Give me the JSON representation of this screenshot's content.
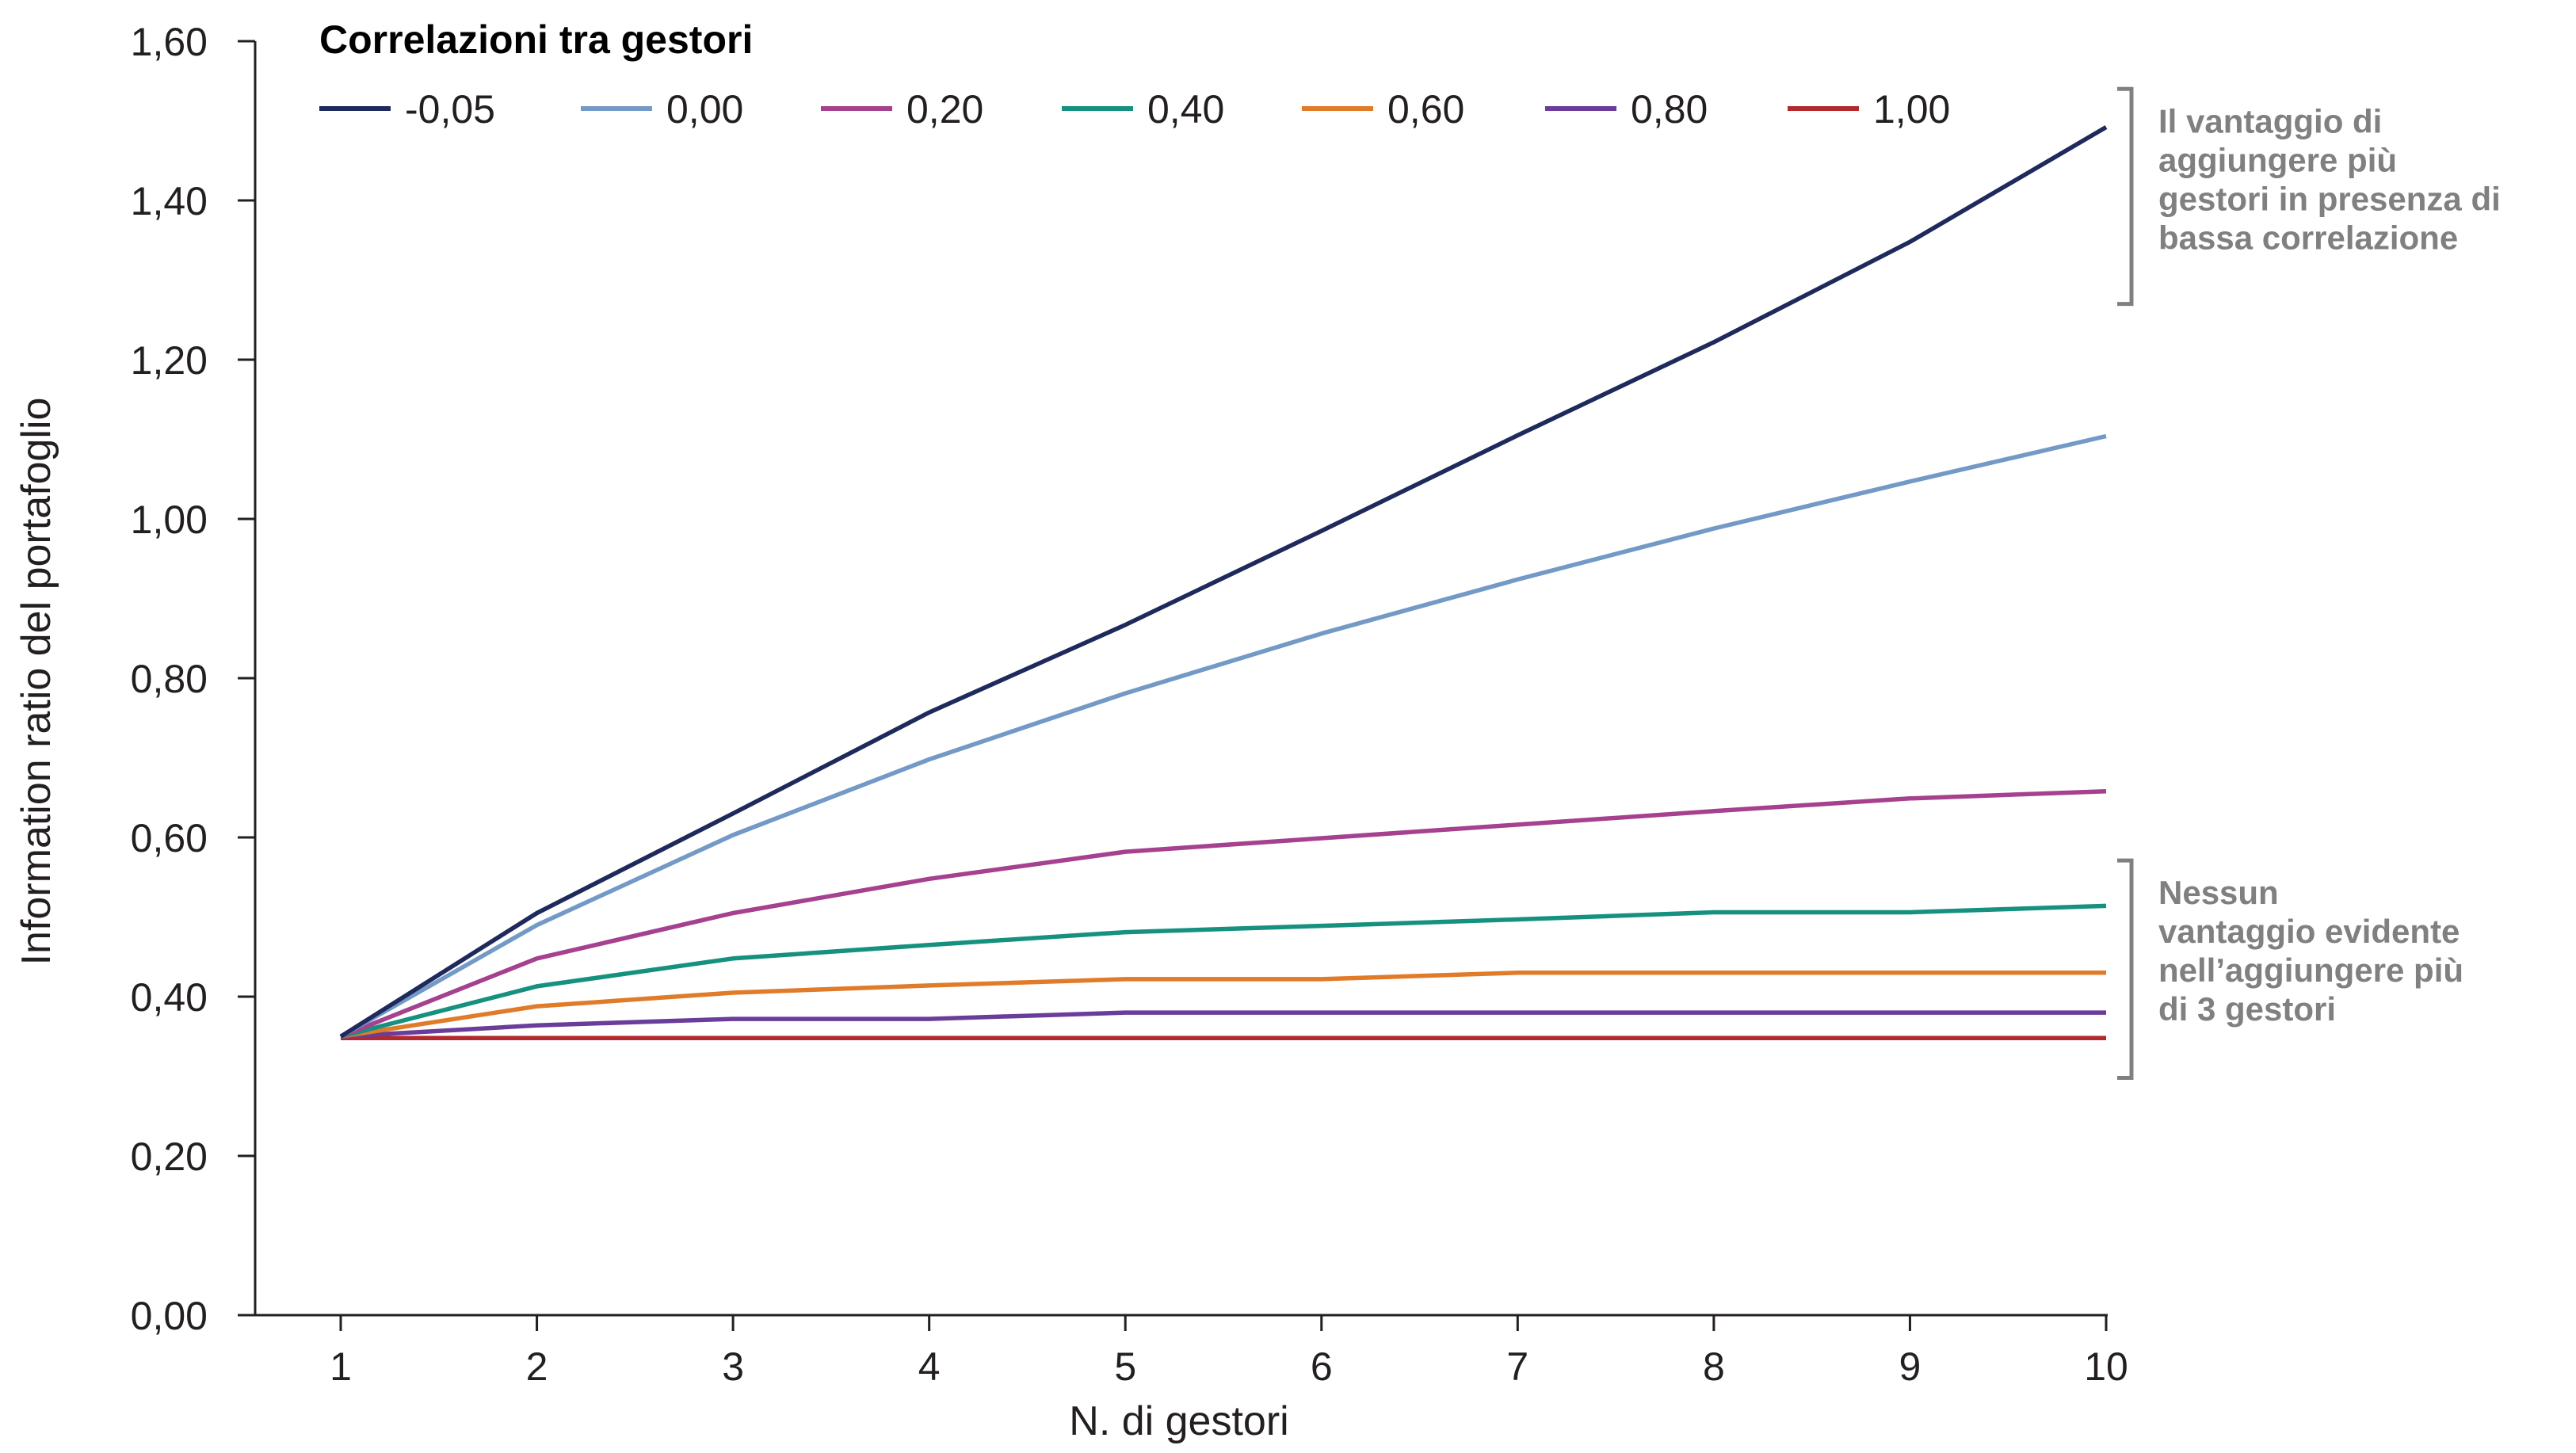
{
  "chart_data": {
    "type": "line",
    "xlabel": "N. di gestori",
    "ylabel": "Information ratio del portafoglio",
    "x": [
      1,
      2,
      3,
      4,
      5,
      6,
      7,
      8,
      9,
      10
    ],
    "x_tick_labels": [
      "1",
      "2",
      "3",
      "4",
      "5",
      "6",
      "7",
      "8",
      "9",
      "10"
    ],
    "ylim": [
      0,
      1.6
    ],
    "y_ticks": [
      0,
      0.2,
      0.4,
      0.6,
      0.8,
      1.0,
      1.2,
      1.4,
      1.6
    ],
    "y_tick_labels": [
      "0,00",
      "0,20",
      "0,40",
      "0,60",
      "0,80",
      "1,00",
      "1,20",
      "1,40",
      "1,60"
    ],
    "grid": false,
    "legend": {
      "title": "Correlazioni tra gestori",
      "placement": "top"
    },
    "series": [
      {
        "name": "-0,05",
        "color": "#1f2a5c",
        "values": [
          0.35,
          0.505,
          0.63,
          0.757,
          0.867,
          0.985,
          1.105,
          1.222,
          1.348,
          1.492
        ]
      },
      {
        "name": "0,00",
        "color": "#7399c6",
        "values": [
          0.35,
          0.49,
          0.603,
          0.698,
          0.781,
          0.856,
          0.924,
          0.988,
          1.047,
          1.104
        ]
      },
      {
        "name": "0,20",
        "color": "#a5418f",
        "values": [
          0.35,
          0.448,
          0.505,
          0.548,
          0.582,
          0.599,
          0.616,
          0.633,
          0.649,
          0.658
        ]
      },
      {
        "name": "0,40",
        "color": "#16917f",
        "values": [
          0.35,
          0.413,
          0.448,
          0.465,
          0.481,
          0.489,
          0.497,
          0.506,
          0.506,
          0.514
        ]
      },
      {
        "name": "0,60",
        "color": "#e07b2a",
        "values": [
          0.35,
          0.388,
          0.405,
          0.414,
          0.422,
          0.422,
          0.43,
          0.43,
          0.43,
          0.43
        ]
      },
      {
        "name": "0,80",
        "color": "#6a3d9a",
        "values": [
          0.35,
          0.364,
          0.372,
          0.372,
          0.38,
          0.38,
          0.38,
          0.38,
          0.38,
          0.38
        ]
      },
      {
        "name": "1,00",
        "color": "#b2292e",
        "values": [
          0.348,
          0.348,
          0.348,
          0.348,
          0.348,
          0.348,
          0.348,
          0.348,
          0.348,
          0.348
        ]
      }
    ],
    "annotations": [
      {
        "lines": [
          "Il vantaggio di",
          "aggiungere più",
          "gestori in presenza di",
          "bassa correlazione"
        ],
        "y_range": [
          1.27,
          1.54
        ]
      },
      {
        "lines": [
          "Nessun",
          "vantaggio evidente",
          "nell’aggiungere più",
          "di 3 gestori"
        ],
        "y_range": [
          0.298,
          0.571
        ]
      }
    ]
  }
}
